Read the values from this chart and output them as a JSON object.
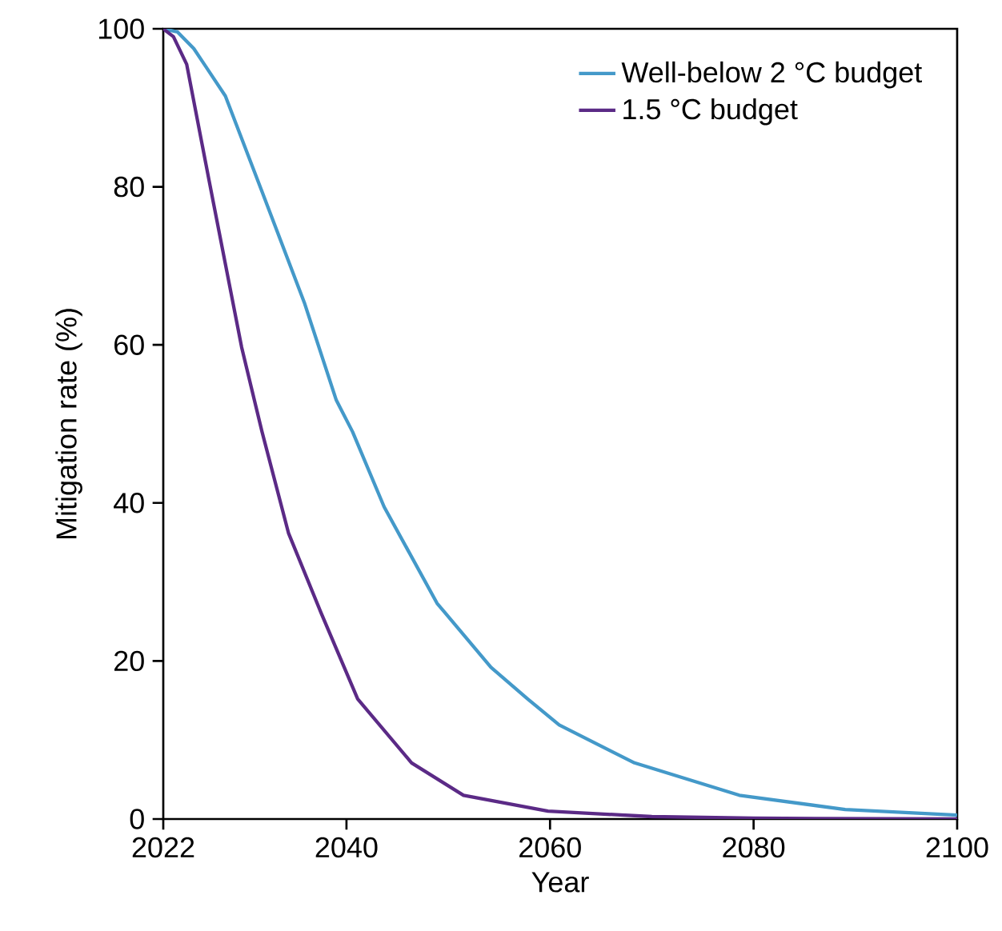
{
  "chart_data": {
    "type": "line",
    "xlabel": "Year",
    "ylabel": "Mitigation rate (%)",
    "xlim": [
      2022,
      2100
    ],
    "ylim": [
      0,
      100
    ],
    "xticks": [
      2022,
      2040,
      2060,
      2080,
      2100
    ],
    "yticks": [
      0,
      20,
      40,
      60,
      80,
      100
    ],
    "grid": false,
    "legend": "top right",
    "marker": "none",
    "line_style": "solid",
    "series": [
      {
        "name": "Well-below 2 °C budget",
        "color": "#4499c9",
        "x": [
          2022,
          2023.4,
          2025,
          2028.1,
          2031.7,
          2035.9,
          2039,
          2040.6,
          2043.7,
          2048.9,
          2054.2,
          2057.8,
          2060.9,
          2068.3,
          2078.6,
          2089,
          2100
        ],
        "values": [
          100,
          99.6,
          97.5,
          91.5,
          79.4,
          65.2,
          53,
          49,
          39.5,
          27.3,
          19.2,
          15.2,
          11.9,
          7.1,
          3.0,
          1.2,
          0.5
        ]
      },
      {
        "name": "1.5 °C budget",
        "color": "#5b2a86",
        "x": [
          2022,
          2023,
          2024.3,
          2026.5,
          2029.7,
          2031.7,
          2034.3,
          2037.5,
          2041.1,
          2046.4,
          2051.5,
          2059.8,
          2070,
          2080,
          2100
        ],
        "values": [
          100,
          99,
          95.5,
          80.8,
          59.7,
          49,
          36.2,
          26.1,
          15.2,
          7.1,
          3.0,
          1.0,
          0.3,
          0.1,
          0
        ]
      }
    ]
  }
}
